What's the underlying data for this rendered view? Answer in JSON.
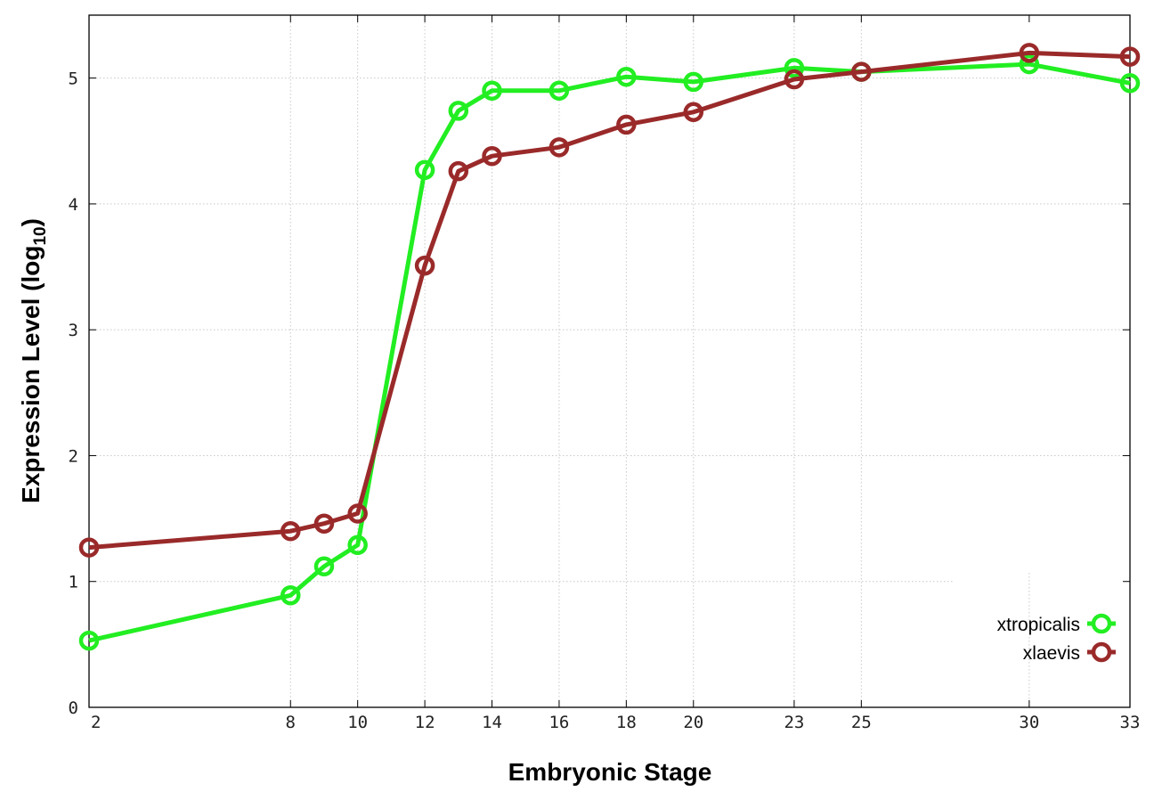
{
  "chart_data": {
    "type": "line",
    "xlabel": "Embryonic Stage",
    "ylabel": "Expression Level (log",
    "ylabel_sub": "10",
    "ylabel_close": ")",
    "x_ticks": [
      2,
      8,
      10,
      12,
      14,
      16,
      18,
      20,
      23,
      25,
      30,
      33
    ],
    "y_ticks": [
      0,
      1,
      2,
      3,
      4,
      5
    ],
    "xlim": [
      2,
      33
    ],
    "ylim": [
      0,
      5.5
    ],
    "grid": true,
    "legend_position": "bottom-right",
    "x_positions": [
      2,
      8,
      9,
      10,
      12,
      13,
      14,
      16,
      18,
      20,
      23,
      25,
      30,
      33
    ],
    "series": [
      {
        "name": "xtropicalis",
        "color": "#22ee22",
        "values": [
          0.53,
          0.89,
          1.12,
          1.29,
          4.27,
          4.74,
          4.9,
          4.9,
          5.01,
          4.97,
          5.08,
          5.05,
          5.11,
          4.96
        ]
      },
      {
        "name": "xlaevis",
        "color": "#9a2a2a",
        "values": [
          1.27,
          1.4,
          1.46,
          1.54,
          3.51,
          4.26,
          4.38,
          4.45,
          4.63,
          4.73,
          4.99,
          5.05,
          5.2,
          5.17
        ]
      }
    ]
  }
}
